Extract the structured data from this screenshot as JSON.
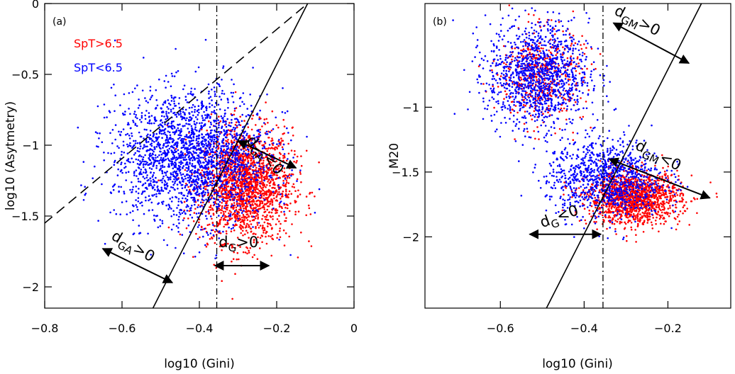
{
  "chart_data": [
    {
      "type": "scatter",
      "panel_label": "(a)",
      "xlabel": "log10 (Gini)",
      "ylabel": "log10 (Asytmetry)",
      "xlim": [
        -0.8,
        0
      ],
      "ylim": [
        -2.15,
        0
      ],
      "xticks": [
        -0.8,
        -0.6,
        -0.4,
        -0.2,
        0
      ],
      "xtick_labels": [
        "−0.8",
        "−0.6",
        "−0.4",
        "−0.2",
        "0"
      ],
      "yticks": [
        0,
        -0.5,
        -1,
        -1.5,
        -2
      ],
      "ytick_labels": [
        "0",
        "−0.5",
        "−1",
        "−1.5",
        "−2"
      ],
      "legend": [
        {
          "label": "SpT>6.5",
          "color": "#ff0000"
        },
        {
          "label": "SpT<6.5",
          "color": "#0000ff"
        }
      ],
      "series": [
        {
          "name": "SpT>6.5",
          "color": "#ff0000",
          "n_points": 1900,
          "clusters": [
            {
              "cx": -0.28,
              "cy": -1.28,
              "sx": 0.06,
              "sy": 0.2,
              "weight": 1.0
            }
          ]
        },
        {
          "name": "SpT<6.5",
          "color": "#0000ff",
          "n_points": 2200,
          "clusters": [
            {
              "cx": -0.42,
              "cy": -1.08,
              "sx": 0.1,
              "sy": 0.23,
              "weight": 1.0
            }
          ]
        }
      ],
      "lines": [
        {
          "name": "solid-line",
          "style": "solid",
          "x1": -0.52,
          "y1": -2.15,
          "x2": -0.12,
          "y2": 0
        },
        {
          "name": "dashed-line",
          "style": "dashed",
          "x1": -0.8,
          "y1": -1.55,
          "x2": -0.12,
          "y2": 0
        },
        {
          "name": "dashdot-line",
          "style": "dashdot",
          "x1": -0.355,
          "y1": -2.15,
          "x2": -0.355,
          "y2": 0
        }
      ],
      "arrows": [
        {
          "name": "dga-negative-arrow",
          "x1": -0.3,
          "y1": -0.97,
          "x2": -0.15,
          "y2": -1.16,
          "double": true
        },
        {
          "name": "dga-positive-arrow",
          "x1": -0.65,
          "y1": -1.73,
          "x2": -0.47,
          "y2": -1.97,
          "double": true
        },
        {
          "name": "dg-positive-arrow",
          "x1": -0.36,
          "y1": -1.85,
          "x2": -0.22,
          "y2": -1.85,
          "double": true
        }
      ],
      "annotations": [
        {
          "name": "dga-negative-label",
          "text": "dGA<0",
          "x": -0.28,
          "y": -0.97,
          "rotation": 48
        },
        {
          "name": "dga-positive-label",
          "text": "dGA>0",
          "x": -0.63,
          "y": -1.66,
          "rotation": 30
        },
        {
          "name": "dg-positive-label",
          "text": "dG>0",
          "x": -0.35,
          "y": -1.72,
          "rotation": 0
        }
      ]
    },
    {
      "type": "scatter",
      "panel_label": "(b)",
      "xlabel": "log10 (Gini)",
      "ylabel": "M20",
      "xlim": [
        -0.78,
        -0.05
      ],
      "ylim": [
        -2.55,
        -0.2
      ],
      "xticks": [
        -0.6,
        -0.4,
        -0.2
      ],
      "xtick_labels": [
        "−0.6",
        "−0.4",
        "−0.2"
      ],
      "yticks": [
        -1,
        -1.5,
        -2
      ],
      "ytick_labels": [
        "−1",
        "−1.5",
        "−2"
      ],
      "series": [
        {
          "name": "SpT>6.5",
          "color": "#ff0000",
          "n_points": 1900,
          "clusters": [
            {
              "cx": -0.28,
              "cy": -1.7,
              "sx": 0.055,
              "sy": 0.1,
              "weight": 0.75
            },
            {
              "cx": -0.5,
              "cy": -0.75,
              "sx": 0.05,
              "sy": 0.18,
              "weight": 0.25
            }
          ]
        },
        {
          "name": "SpT<6.5",
          "color": "#0000ff",
          "n_points": 2200,
          "clusters": [
            {
              "cx": -0.51,
              "cy": -0.75,
              "sx": 0.06,
              "sy": 0.2,
              "weight": 0.55
            },
            {
              "cx": -0.35,
              "cy": -1.55,
              "sx": 0.07,
              "sy": 0.15,
              "weight": 0.45
            }
          ]
        }
      ],
      "lines": [
        {
          "name": "solid-line",
          "style": "solid",
          "x1": -0.49,
          "y1": -2.55,
          "x2": -0.12,
          "y2": -0.2
        },
        {
          "name": "dashdot-line",
          "style": "dashdot",
          "x1": -0.355,
          "y1": -2.55,
          "x2": -0.355,
          "y2": -0.2
        }
      ],
      "arrows": [
        {
          "name": "dgm-positive-arrow",
          "x1": -0.33,
          "y1": -0.35,
          "x2": -0.15,
          "y2": -0.66,
          "double": true
        },
        {
          "name": "dgm-negative-arrow",
          "x1": -0.34,
          "y1": -1.4,
          "x2": -0.1,
          "y2": -1.7,
          "double": true
        },
        {
          "name": "dg-negative-arrow",
          "x1": -0.53,
          "y1": -1.98,
          "x2": -0.36,
          "y2": -1.98,
          "double": true
        }
      ],
      "annotations": [
        {
          "name": "dgm-positive-label",
          "text": "dGM>0",
          "x": -0.33,
          "y": -0.28,
          "rotation": 27
        },
        {
          "name": "dgm-negative-label",
          "text": "dGM<0",
          "x": -0.28,
          "y": -1.32,
          "rotation": 27
        },
        {
          "name": "dg-negative-label",
          "text": "dG<0",
          "x": -0.5,
          "y": -1.93,
          "rotation": -20
        }
      ]
    }
  ]
}
